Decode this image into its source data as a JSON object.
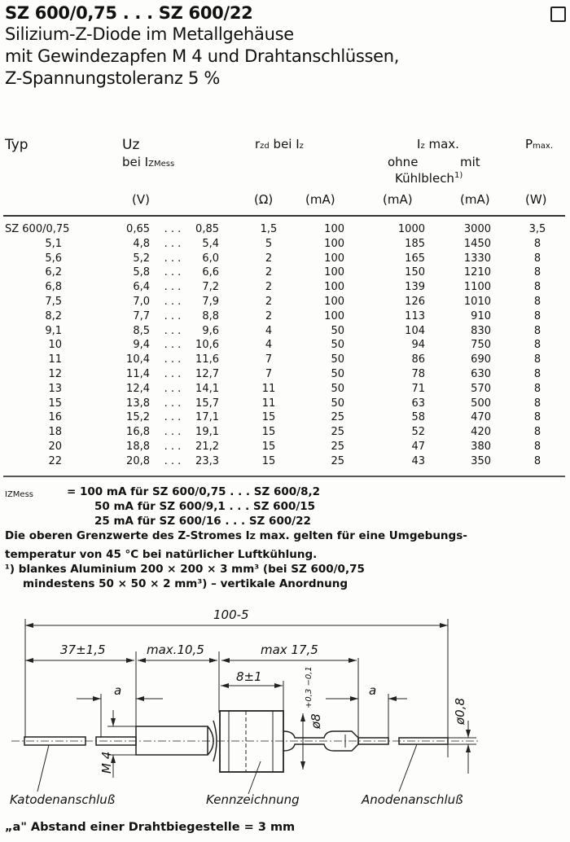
{
  "header": {
    "title": "SZ 600/0,75 . . . SZ 600/22",
    "subtitle_lines": [
      "Silizium-Z-Diode im Metallgehäuse",
      "mit Gewindezapfen M 4 und Drahtanschlüssen,",
      "Z-Spannungstoleranz 5 %"
    ]
  },
  "table": {
    "headers": {
      "typ": "Typ",
      "uz": "Uz",
      "uz_sub": "bei I",
      "uz_sub_index": "ZMess",
      "uz_unit": "(V)",
      "rzd": "r",
      "rzd_index": "zd",
      "rzd_rest": " bei I",
      "rzd_rest_index": "z",
      "rzd_unit": "(Ω)",
      "iz_unit": "(mA)",
      "izmax": "I",
      "izmax_index": "z",
      "izmax_rest": " max.",
      "ohne": "ohne",
      "mit": "mit",
      "kuehlblech": "Kühlblech",
      "kuehlblech_sup": "1)",
      "ohne_unit": "(mA)",
      "mit_unit": "(mA)",
      "pmax": "P",
      "pmax_index": "max.",
      "pmax_unit": "(W)"
    },
    "rows": [
      {
        "typ": "SZ 600/0,75",
        "uz_min": "0,65",
        "uz_max": "0,85",
        "rzd": "1,5",
        "iz": "100",
        "ohne": "1000",
        "mit": "3000",
        "p": "3,5"
      },
      {
        "typ": "5,1",
        "uz_min": "4,8",
        "uz_max": "5,4",
        "rzd": "5",
        "iz": "100",
        "ohne": "185",
        "mit": "1450",
        "p": "8"
      },
      {
        "typ": "5,6",
        "uz_min": "5,2",
        "uz_max": "6,0",
        "rzd": "2",
        "iz": "100",
        "ohne": "165",
        "mit": "1330",
        "p": "8"
      },
      {
        "typ": "6,2",
        "uz_min": "5,8",
        "uz_max": "6,6",
        "rzd": "2",
        "iz": "100",
        "ohne": "150",
        "mit": "1210",
        "p": "8"
      },
      {
        "typ": "6,8",
        "uz_min": "6,4",
        "uz_max": "7,2",
        "rzd": "2",
        "iz": "100",
        "ohne": "139",
        "mit": "1100",
        "p": "8"
      },
      {
        "typ": "7,5",
        "uz_min": "7,0",
        "uz_max": "7,9",
        "rzd": "2",
        "iz": "100",
        "ohne": "126",
        "mit": "1010",
        "p": "8"
      },
      {
        "typ": "8,2",
        "uz_min": "7,7",
        "uz_max": "8,8",
        "rzd": "2",
        "iz": "100",
        "ohne": "113",
        "mit": "910",
        "p": "8"
      },
      {
        "typ": "9,1",
        "uz_min": "8,5",
        "uz_max": "9,6",
        "rzd": "4",
        "iz": "50",
        "ohne": "104",
        "mit": "830",
        "p": "8"
      },
      {
        "typ": "10",
        "uz_min": "9,4",
        "uz_max": "10,6",
        "rzd": "4",
        "iz": "50",
        "ohne": "94",
        "mit": "750",
        "p": "8"
      },
      {
        "typ": "11",
        "uz_min": "10,4",
        "uz_max": "11,6",
        "rzd": "7",
        "iz": "50",
        "ohne": "86",
        "mit": "690",
        "p": "8"
      },
      {
        "typ": "12",
        "uz_min": "11,4",
        "uz_max": "12,7",
        "rzd": "7",
        "iz": "50",
        "ohne": "78",
        "mit": "630",
        "p": "8"
      },
      {
        "typ": "13",
        "uz_min": "12,4",
        "uz_max": "14,1",
        "rzd": "11",
        "iz": "50",
        "ohne": "71",
        "mit": "570",
        "p": "8"
      },
      {
        "typ": "15",
        "uz_min": "13,8",
        "uz_max": "15,7",
        "rzd": "11",
        "iz": "50",
        "ohne": "63",
        "mit": "500",
        "p": "8"
      },
      {
        "typ": "16",
        "uz_min": "15,2",
        "uz_max": "17,1",
        "rzd": "15",
        "iz": "25",
        "ohne": "58",
        "mit": "470",
        "p": "8"
      },
      {
        "typ": "18",
        "uz_min": "16,8",
        "uz_max": "19,1",
        "rzd": "15",
        "iz": "25",
        "ohne": "52",
        "mit": "420",
        "p": "8"
      },
      {
        "typ": "20",
        "uz_min": "18,8",
        "uz_max": "21,2",
        "rzd": "15",
        "iz": "25",
        "ohne": "47",
        "mit": "380",
        "p": "8"
      },
      {
        "typ": "22",
        "uz_min": "20,8",
        "uz_max": "23,3",
        "rzd": "15",
        "iz": "25",
        "ohne": "43",
        "mit": "350",
        "p": "8"
      }
    ],
    "range_separator": ". . ."
  },
  "notes": {
    "izmess_label": "I",
    "izmess_index": "ZMess",
    "izmess_lines": [
      "= 100 mA für SZ 600/0,75 . . . SZ 600/8,2",
      "50 mA für SZ 600/9,1  . . . SZ 600/15",
      "25 mA für SZ 600/16   . . . SZ 600/22"
    ],
    "limit_line1": "Die oberen Grenzwerte des Z-Stromes I",
    "limit_line1_index": "Z",
    "limit_line1_rest": " max. gelten für eine Umgebungs-",
    "limit_line2": "temperatur von 45 °C bei natürlicher Luftkühlung.",
    "footnote1": "¹) blankes Aluminium 200 × 200 × 3 mm³ (bei SZ 600/0,75",
    "footnote2": "mindestens 50 × 50 × 2 mm³) – vertikale Anordnung"
  },
  "drawing": {
    "dim_total": "100-5",
    "dim_lead": "37±1,5",
    "dim_thread": "max.10,5",
    "dim_body": "max 17,5",
    "dim_case": "8±1",
    "dim_a": "a",
    "dim_thread_size": "M 4",
    "dim_diameter": "ø8",
    "dim_diameter_tol": "+0,3 −0,1",
    "dim_wire": "ø0,8",
    "label_cathode": "Katodenanschluß",
    "label_marking": "Kennzeichnung",
    "label_anode": "Anodenanschluß",
    "footnote": "„a\" Abstand einer Drahtbiegestelle = 3 mm"
  }
}
